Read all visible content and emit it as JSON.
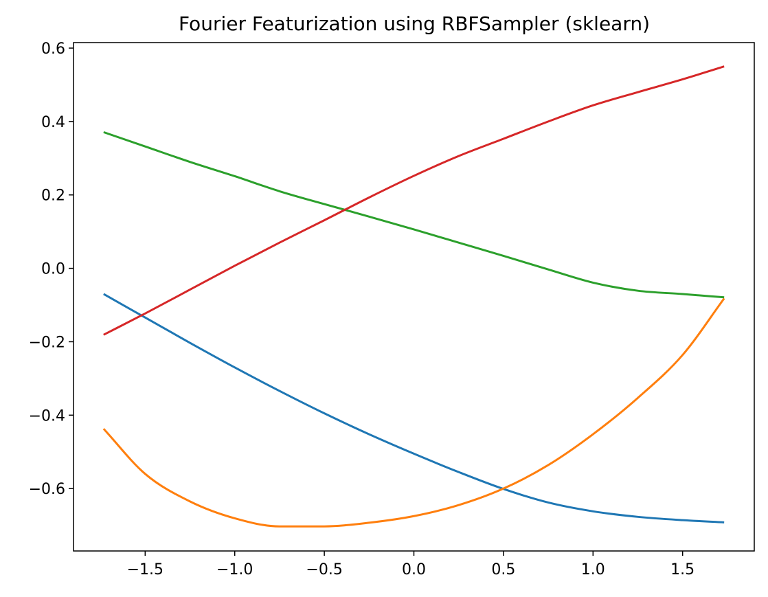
{
  "chart_data": {
    "type": "line",
    "title": "Fourier Featurization using RBFSampler (sklearn)",
    "xlabel": "",
    "ylabel": "",
    "xlim": [
      -1.9,
      1.9
    ],
    "ylim": [
      -0.77,
      0.615
    ],
    "grid": false,
    "xticks": [
      -1.5,
      -1.0,
      -0.5,
      0.0,
      0.5,
      1.0,
      1.5
    ],
    "xtick_labels": [
      "−1.5",
      "−1.0",
      "−0.5",
      "0.0",
      "0.5",
      "1.0",
      "1.5"
    ],
    "yticks": [
      -0.6,
      -0.4,
      -0.2,
      0.0,
      0.2,
      0.4,
      0.6
    ],
    "ytick_labels": [
      "−0.6",
      "−0.4",
      "−0.2",
      "0.0",
      "0.2",
      "0.4",
      "0.6"
    ],
    "x": [
      -1.732,
      -1.5,
      -1.25,
      -1.0,
      -0.75,
      -0.5,
      -0.25,
      0.0,
      0.25,
      0.5,
      0.75,
      1.0,
      1.25,
      1.5,
      1.732
    ],
    "series": [
      {
        "color": "#1f77b4",
        "values": [
          -0.07,
          -0.134,
          -0.203,
          -0.27,
          -0.334,
          -0.395,
          -0.452,
          -0.505,
          -0.555,
          -0.601,
          -0.638,
          -0.662,
          -0.677,
          -0.686,
          -0.692
        ]
      },
      {
        "color": "#ff7f0e",
        "values": [
          -0.437,
          -0.56,
          -0.635,
          -0.681,
          -0.703,
          -0.703,
          -0.693,
          -0.675,
          -0.645,
          -0.6,
          -0.536,
          -0.452,
          -0.353,
          -0.236,
          -0.082
        ]
      },
      {
        "color": "#2ca02c",
        "values": [
          0.371,
          0.332,
          0.29,
          0.251,
          0.21,
          0.175,
          0.141,
          0.106,
          0.07,
          0.034,
          -0.003,
          -0.039,
          -0.061,
          -0.07,
          -0.079
        ]
      },
      {
        "color": "#d62728",
        "values": [
          -0.181,
          -0.123,
          -0.058,
          0.007,
          0.07,
          0.131,
          0.193,
          0.252,
          0.306,
          0.353,
          0.4,
          0.444,
          0.48,
          0.515,
          0.55
        ]
      }
    ]
  }
}
